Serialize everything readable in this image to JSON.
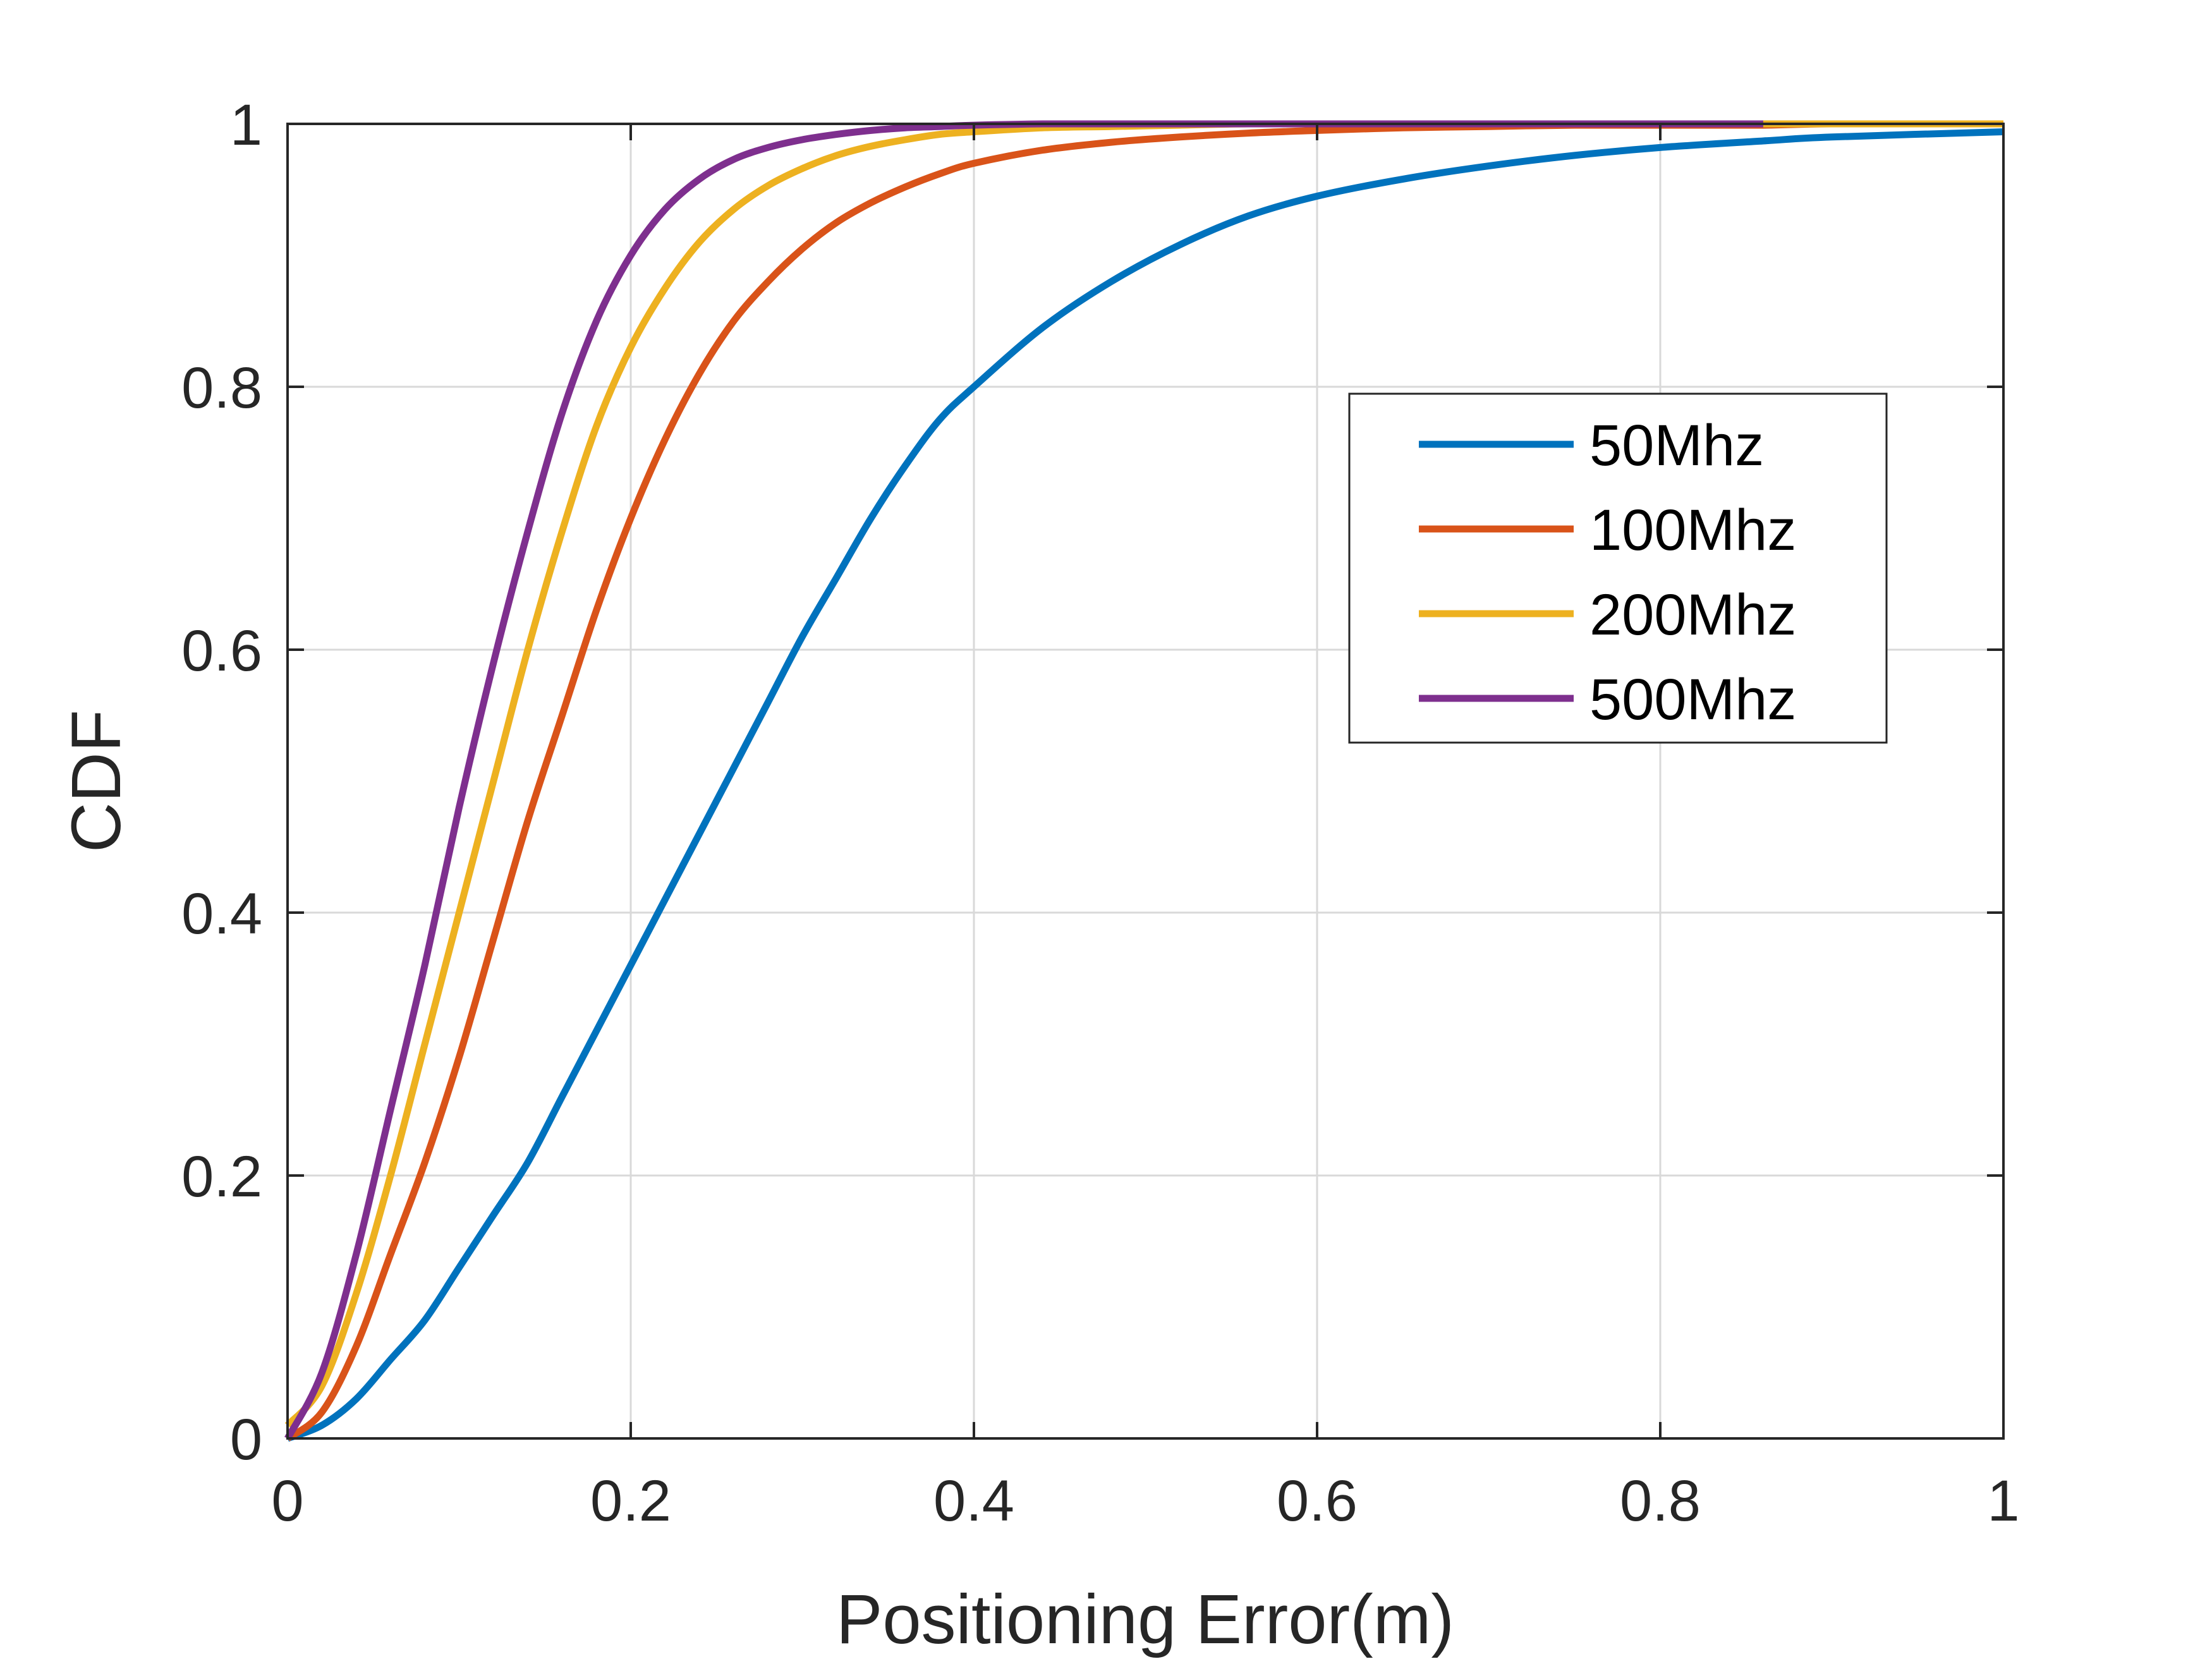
{
  "chart_data": {
    "type": "line",
    "title": "",
    "xlabel": "Positioning Error(m)",
    "ylabel": "CDF",
    "xlim": [
      0,
      1
    ],
    "ylim": [
      0,
      1
    ],
    "xticks": [
      0,
      0.2,
      0.4,
      0.6,
      0.8,
      1
    ],
    "yticks": [
      0,
      0.2,
      0.4,
      0.6,
      0.8,
      1
    ],
    "xtick_labels": [
      "0",
      "0.2",
      "0.4",
      "0.6",
      "0.8",
      "1"
    ],
    "ytick_labels": [
      "0",
      "0.2",
      "0.4",
      "0.6",
      "0.8",
      "1"
    ],
    "grid": true,
    "legend_position": "upper-right-inside",
    "x": [
      0,
      0.02,
      0.04,
      0.06,
      0.08,
      0.1,
      0.12,
      0.14,
      0.16,
      0.18,
      0.2,
      0.22,
      0.24,
      0.26,
      0.28,
      0.3,
      0.32,
      0.34,
      0.36,
      0.38,
      0.4,
      0.44,
      0.48,
      0.52,
      0.56,
      0.6,
      0.65,
      0.7,
      0.75,
      0.8,
      0.86,
      0.9,
      1.0
    ],
    "series": [
      {
        "name": "50Mhz",
        "color": "#0072bd",
        "values": [
          0,
          0.01,
          0.03,
          0.06,
          0.09,
          0.13,
          0.17,
          0.21,
          0.26,
          0.31,
          0.36,
          0.41,
          0.46,
          0.51,
          0.56,
          0.61,
          0.655,
          0.7,
          0.74,
          0.775,
          0.8,
          0.845,
          0.88,
          0.908,
          0.93,
          0.945,
          0.958,
          0.968,
          0.976,
          0.982,
          0.987,
          0.99,
          0.994
        ]
      },
      {
        "name": "100Mhz",
        "color": "#d95319",
        "values": [
          0,
          0.02,
          0.07,
          0.14,
          0.21,
          0.29,
          0.38,
          0.47,
          0.55,
          0.63,
          0.7,
          0.76,
          0.81,
          0.85,
          0.88,
          0.905,
          0.925,
          0.94,
          0.952,
          0.962,
          0.97,
          0.98,
          0.986,
          0.99,
          0.993,
          0.995,
          0.997,
          0.998,
          0.999,
          0.999,
          0.999,
          1.0,
          1.0
        ]
      },
      {
        "name": "200Mhz",
        "color": "#edb120",
        "values": [
          0.01,
          0.04,
          0.11,
          0.2,
          0.3,
          0.4,
          0.5,
          0.6,
          0.69,
          0.77,
          0.83,
          0.875,
          0.91,
          0.935,
          0.953,
          0.966,
          0.976,
          0.983,
          0.988,
          0.992,
          0.994,
          0.997,
          0.998,
          0.999,
          1.0,
          1.0,
          1.0,
          1.0,
          1.0,
          1.0,
          1.0,
          1.0,
          1.0
        ]
      },
      {
        "name": "500Mhz",
        "color": "#7e2f8e",
        "values": [
          0,
          0.05,
          0.14,
          0.25,
          0.36,
          0.48,
          0.59,
          0.69,
          0.78,
          0.85,
          0.9,
          0.935,
          0.958,
          0.973,
          0.982,
          0.988,
          0.992,
          0.995,
          0.997,
          0.998,
          0.999,
          1.0,
          1.0,
          1.0,
          1.0,
          1.0,
          1.0,
          1.0,
          1.0,
          1.0,
          1.0,
          null,
          null
        ]
      }
    ]
  }
}
